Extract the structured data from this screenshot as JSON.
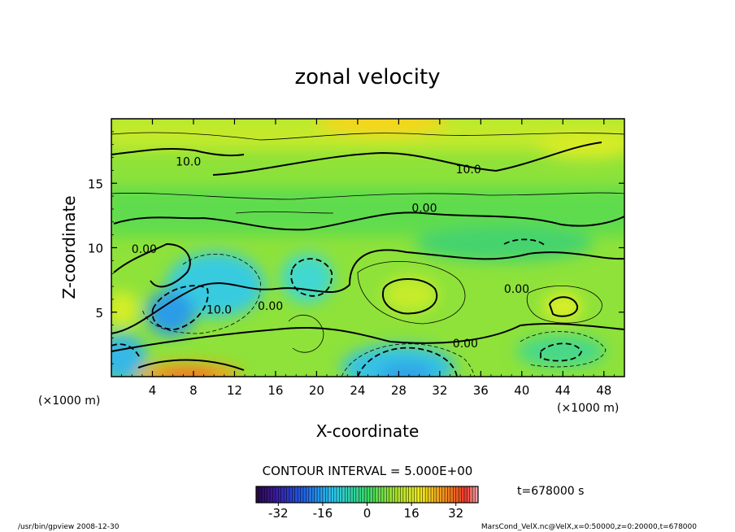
{
  "chart_data": {
    "type": "heatmap",
    "title": "zonal velocity",
    "xlabel": "X-coordinate",
    "ylabel": "Z-coordinate",
    "x_unit_left": "(×1000 m)",
    "x_unit_right": "(×1000 m)",
    "xlim": [
      0,
      50
    ],
    "ylim": [
      0,
      20
    ],
    "x_ticks": [
      4,
      8,
      12,
      16,
      20,
      24,
      28,
      32,
      36,
      40,
      44,
      48
    ],
    "y_ticks": [
      5,
      10,
      15
    ],
    "contour_interval": "CONTOUR INTERVAL = 5.000E+00",
    "time_label": "t=678000 s",
    "colorbar_ticks": [
      -32,
      -16,
      0,
      16,
      32
    ],
    "colorbar_range": [
      -40,
      40
    ],
    "contour_labels": [
      {
        "text": "10.0",
        "x": 7.5,
        "z": 16.7
      },
      {
        "text": "10.0",
        "x": 34.8,
        "z": 16.1
      },
      {
        "text": "0.00",
        "x": 30.5,
        "z": 13.1
      },
      {
        "text": "0.00",
        "x": 3.2,
        "z": 9.9
      },
      {
        "text": "10.0",
        "x": 10.5,
        "z": 5.2
      },
      {
        "text": "0.00",
        "x": 15.5,
        "z": 5.5
      },
      {
        "text": "0.00",
        "x": 39.5,
        "z": 6.8
      },
      {
        "text": "0.00",
        "x": 34.5,
        "z": 2.6
      }
    ]
  },
  "colors": {
    "strong_negative": "#1e6fe6",
    "weak_negative": "#3ce0dc",
    "zero": "#42d66b",
    "weak_positive": "#9fe52e",
    "positive": "#f6f01c",
    "strong_positive": "#f28c1c",
    "extreme_positive": "#ea3a28"
  },
  "footer": {
    "left": "/usr/bin/gpview   2008-12-30",
    "right": "MarsCond_VelX.nc@VelX,x=0:50000,z=0:20000,t=678000"
  }
}
